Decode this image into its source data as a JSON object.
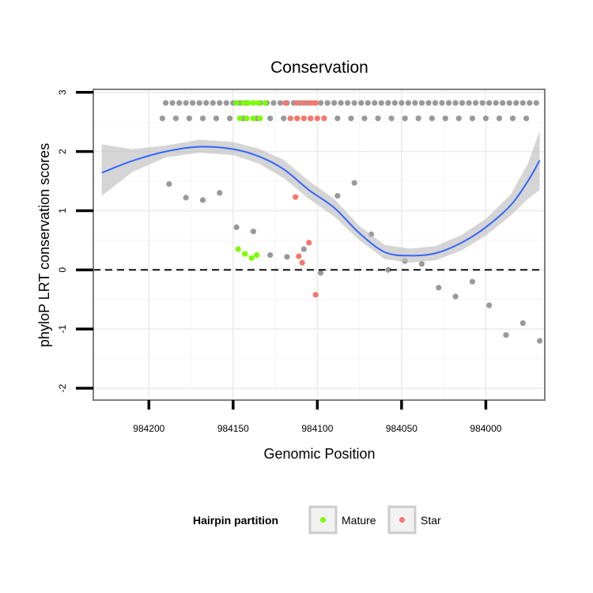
{
  "chart_data": {
    "type": "scatter",
    "title": "Conservation",
    "xlabel": "Genomic Position",
    "ylabel": "phyloP LRT conservation scores",
    "xlim": [
      984233,
      983965
    ],
    "ylim": [
      -2.2,
      3.05
    ],
    "x_reversed": true,
    "x_ticks": [
      984200,
      984150,
      984100,
      984050,
      984000
    ],
    "x_tick_labels": [
      "984200",
      "984150",
      "984100",
      "984050",
      "984000"
    ],
    "y_ticks": [
      -2,
      -1,
      0,
      1,
      2,
      3
    ],
    "y_tick_labels": [
      "-2",
      "-1",
      "0",
      "1",
      "2",
      "3"
    ],
    "grid": true,
    "reference_line": {
      "y": 0,
      "style": "dashed",
      "color": "#000000"
    },
    "colors": {
      "other": "#999999",
      "Mature": "#7CFC00",
      "Star": "#F8766D",
      "smooth": "#3366FF",
      "band": "#BEBEBE",
      "panel_bg": "#FFFFFF",
      "grid": "#EBEBEB",
      "border": "#7F7F7F"
    },
    "legend": {
      "title": "Hairpin partition",
      "position": "bottom",
      "entries": [
        {
          "label": "Mature",
          "color": "#7CFC00"
        },
        {
          "label": "Star",
          "color": "#F8766D"
        }
      ]
    },
    "series": [
      {
        "group": "other",
        "color": "#999999",
        "x": [
          984190,
          984186,
          984182,
          984178,
          984174,
          984170,
          984166,
          984162,
          984158,
          984154,
          984150,
          984146,
          984142,
          984138,
          984134,
          984130,
          984126,
          984122,
          984118,
          984114,
          984110,
          984106,
          984102,
          984098,
          984094,
          984090,
          984086,
          984082,
          984078,
          984074,
          984070,
          984066,
          984062,
          984058,
          984054,
          984050,
          984046,
          984042,
          984038,
          984034,
          984030,
          984026,
          984022,
          984018,
          984014,
          984010,
          984006,
          984002,
          983998,
          983994,
          983990,
          983986,
          983982,
          983978,
          983974,
          983970,
          984192,
          984184,
          984176,
          984168,
          984160,
          984152,
          984144,
          984136,
          984128,
          984120,
          984112,
          984104,
          984096,
          984088,
          984080,
          984072,
          984064,
          984056,
          984048,
          984040,
          984032,
          984024,
          984016,
          984008,
          984000,
          983992,
          983984,
          983976,
          984188,
          984178,
          984168,
          984158,
          984148,
          984138,
          984128,
          984118,
          984108,
          984098,
          984088,
          984078,
          984068,
          984058,
          984048,
          984038,
          984028,
          984018,
          984008,
          983998,
          983988,
          983978,
          983968
        ],
        "y": [
          2.82,
          2.82,
          2.82,
          2.82,
          2.82,
          2.82,
          2.82,
          2.82,
          2.82,
          2.82,
          2.82,
          2.82,
          2.82,
          2.82,
          2.82,
          2.82,
          2.82,
          2.82,
          2.82,
          2.82,
          2.82,
          2.82,
          2.82,
          2.82,
          2.82,
          2.82,
          2.82,
          2.82,
          2.82,
          2.82,
          2.82,
          2.82,
          2.82,
          2.82,
          2.82,
          2.82,
          2.82,
          2.82,
          2.82,
          2.82,
          2.82,
          2.82,
          2.82,
          2.82,
          2.82,
          2.82,
          2.82,
          2.82,
          2.82,
          2.82,
          2.82,
          2.82,
          2.82,
          2.82,
          2.82,
          2.82,
          2.56,
          2.56,
          2.56,
          2.56,
          2.56,
          2.56,
          2.56,
          2.56,
          2.56,
          2.56,
          2.56,
          2.56,
          2.56,
          2.56,
          2.56,
          2.56,
          2.56,
          2.56,
          2.56,
          2.56,
          2.56,
          2.56,
          2.56,
          2.56,
          2.56,
          2.56,
          2.56,
          2.56,
          1.45,
          1.22,
          1.18,
          1.3,
          0.72,
          0.65,
          0.25,
          0.22,
          0.35,
          -0.05,
          1.25,
          1.47,
          0.6,
          0.0,
          0.15,
          0.1,
          -0.3,
          -0.45,
          -0.2,
          -0.6,
          -1.1,
          -0.9,
          -1.2
        ]
      },
      {
        "group": "Mature",
        "color": "#7CFC00",
        "x": [
          984148,
          984144,
          984141,
          984138,
          984135,
          984131,
          984146,
          984142,
          984138,
          984134,
          984147,
          984143,
          984139,
          984136
        ],
        "y": [
          2.82,
          2.82,
          2.82,
          2.82,
          2.82,
          2.82,
          2.56,
          2.56,
          2.56,
          2.56,
          0.35,
          0.27,
          0.2,
          0.25
        ]
      },
      {
        "group": "Star",
        "color": "#F8766D",
        "x": [
          984119,
          984112,
          984108,
          984104,
          984101,
          984116,
          984112,
          984108,
          984104,
          984100,
          984096,
          984113,
          984111,
          984109,
          984105,
          984101
        ],
        "y": [
          2.82,
          2.82,
          2.82,
          2.82,
          2.82,
          2.56,
          2.56,
          2.56,
          2.56,
          2.56,
          2.56,
          1.23,
          0.23,
          0.12,
          0.46,
          -0.42
        ]
      }
    ],
    "smooth": {
      "method": "loess",
      "color": "#3366FF",
      "x": [
        984228,
        984210,
        984190,
        984170,
        984150,
        984135,
        984120,
        984105,
        984090,
        984075,
        984060,
        984045,
        984030,
        984015,
        984000,
        983985,
        983975,
        983968
      ],
      "y": [
        1.64,
        1.84,
        2.0,
        2.08,
        2.04,
        1.92,
        1.7,
        1.35,
        1.05,
        0.62,
        0.3,
        0.24,
        0.28,
        0.45,
        0.72,
        1.1,
        1.5,
        1.85
      ],
      "lower": [
        1.25,
        1.65,
        1.9,
        1.98,
        1.94,
        1.8,
        1.55,
        1.2,
        0.9,
        0.5,
        0.18,
        0.12,
        0.16,
        0.32,
        0.58,
        0.92,
        1.2,
        1.35
      ],
      "upper": [
        2.12,
        2.04,
        2.1,
        2.2,
        2.16,
        2.05,
        1.86,
        1.5,
        1.2,
        0.74,
        0.42,
        0.36,
        0.4,
        0.58,
        0.86,
        1.28,
        1.8,
        2.35
      ]
    }
  }
}
